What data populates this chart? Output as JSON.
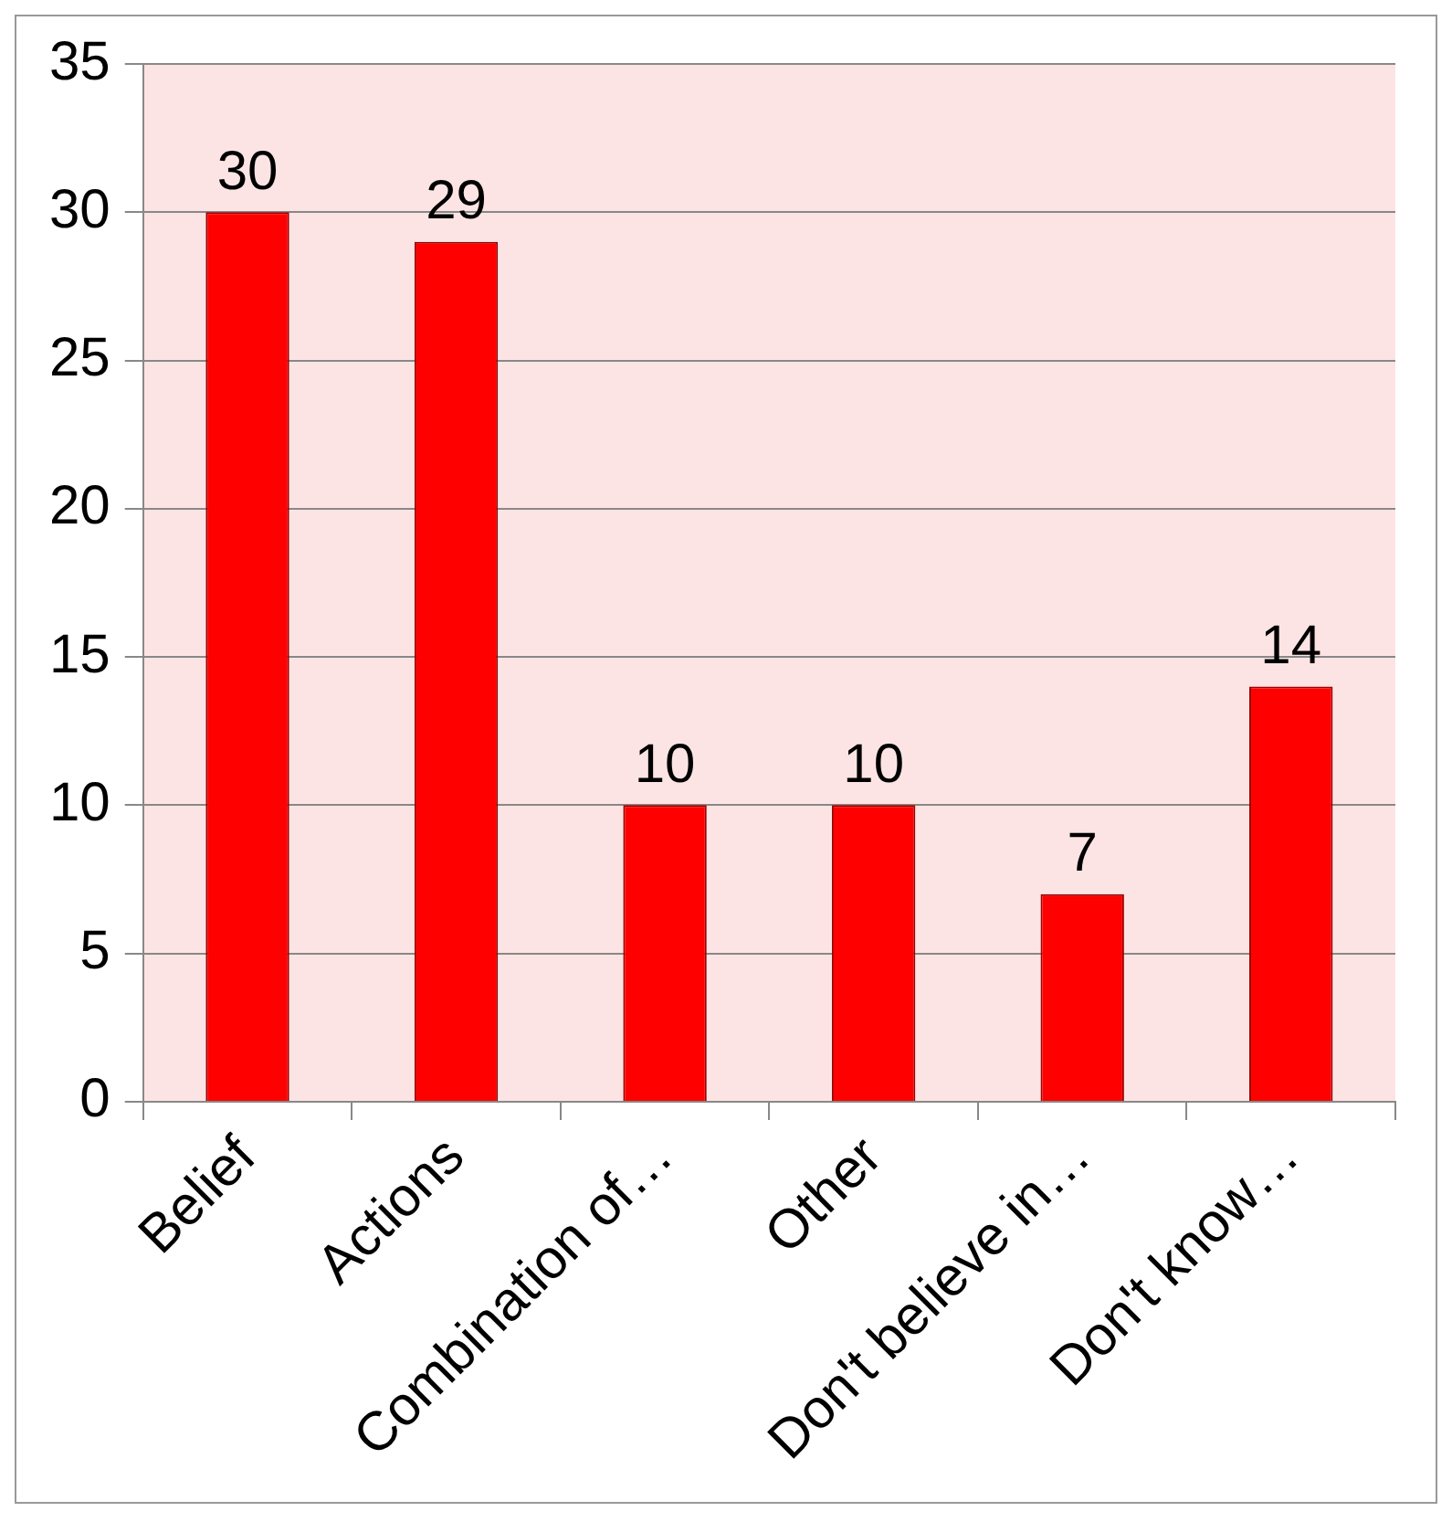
{
  "chart_data": {
    "type": "bar",
    "categories": [
      "Belief",
      "Actions",
      "Combination of…",
      "Other",
      "Don't believe in…",
      "Don't know…"
    ],
    "values": [
      30,
      29,
      10,
      10,
      7,
      14
    ],
    "color": "#ff0000",
    "ylim": [
      0,
      35
    ],
    "yticks": [
      0,
      5,
      10,
      15,
      20,
      25,
      30,
      35
    ],
    "grid": "y",
    "legend": false,
    "data_labels": true
  }
}
